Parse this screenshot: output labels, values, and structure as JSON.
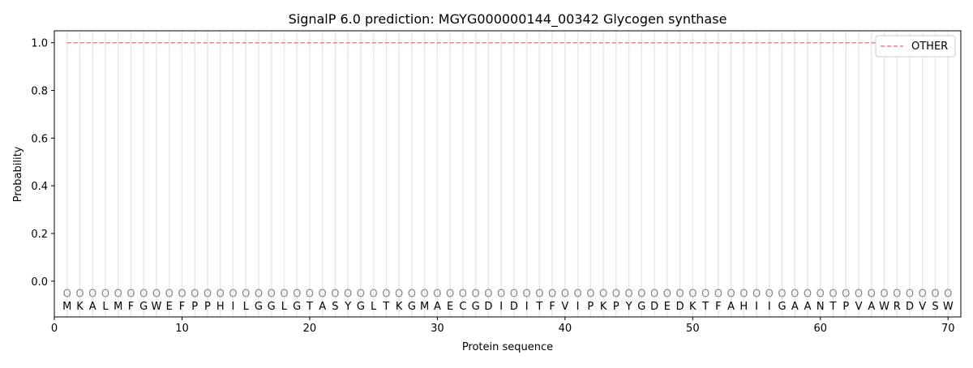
{
  "chart_data": {
    "type": "line",
    "title": "SignalP 6.0 prediction: MGYG000000144_00342 Glycogen synthase",
    "xlabel": "Protein sequence",
    "ylabel": "Probability",
    "xlim": [
      0,
      71
    ],
    "ylim": [
      -0.15,
      1.05
    ],
    "xticks": [
      0,
      10,
      20,
      30,
      40,
      50,
      60,
      70
    ],
    "yticks": [
      0.0,
      0.2,
      0.4,
      0.6,
      0.8,
      1.0
    ],
    "ytick_labels": [
      "0.0",
      "0.2",
      "0.4",
      "0.6",
      "0.8",
      "1.0"
    ],
    "grid": "vertical per residue",
    "legend_position": "top-right",
    "sequence": [
      "M",
      "K",
      "A",
      "L",
      "M",
      "F",
      "G",
      "W",
      "E",
      "F",
      "P",
      "P",
      "H",
      "I",
      "L",
      "G",
      "G",
      "L",
      "G",
      "T",
      "A",
      "S",
      "Y",
      "G",
      "L",
      "T",
      "K",
      "G",
      "M",
      "A",
      "E",
      "C",
      "G",
      "D",
      "I",
      "D",
      "I",
      "T",
      "F",
      "V",
      "I",
      "P",
      "K",
      "P",
      "Y",
      "G",
      "D",
      "E",
      "D",
      "K",
      "T",
      "F",
      "A",
      "H",
      "I",
      "I",
      "G",
      "A",
      "A",
      "N",
      "T",
      "P",
      "V",
      "A",
      "W",
      "R",
      "D",
      "V",
      "S",
      "W"
    ],
    "label_marker": "O",
    "series": [
      {
        "name": "OTHER",
        "color": "#f08080",
        "style": "dashed",
        "x_start": 1,
        "x_end": 70,
        "value": 1.0
      }
    ]
  }
}
